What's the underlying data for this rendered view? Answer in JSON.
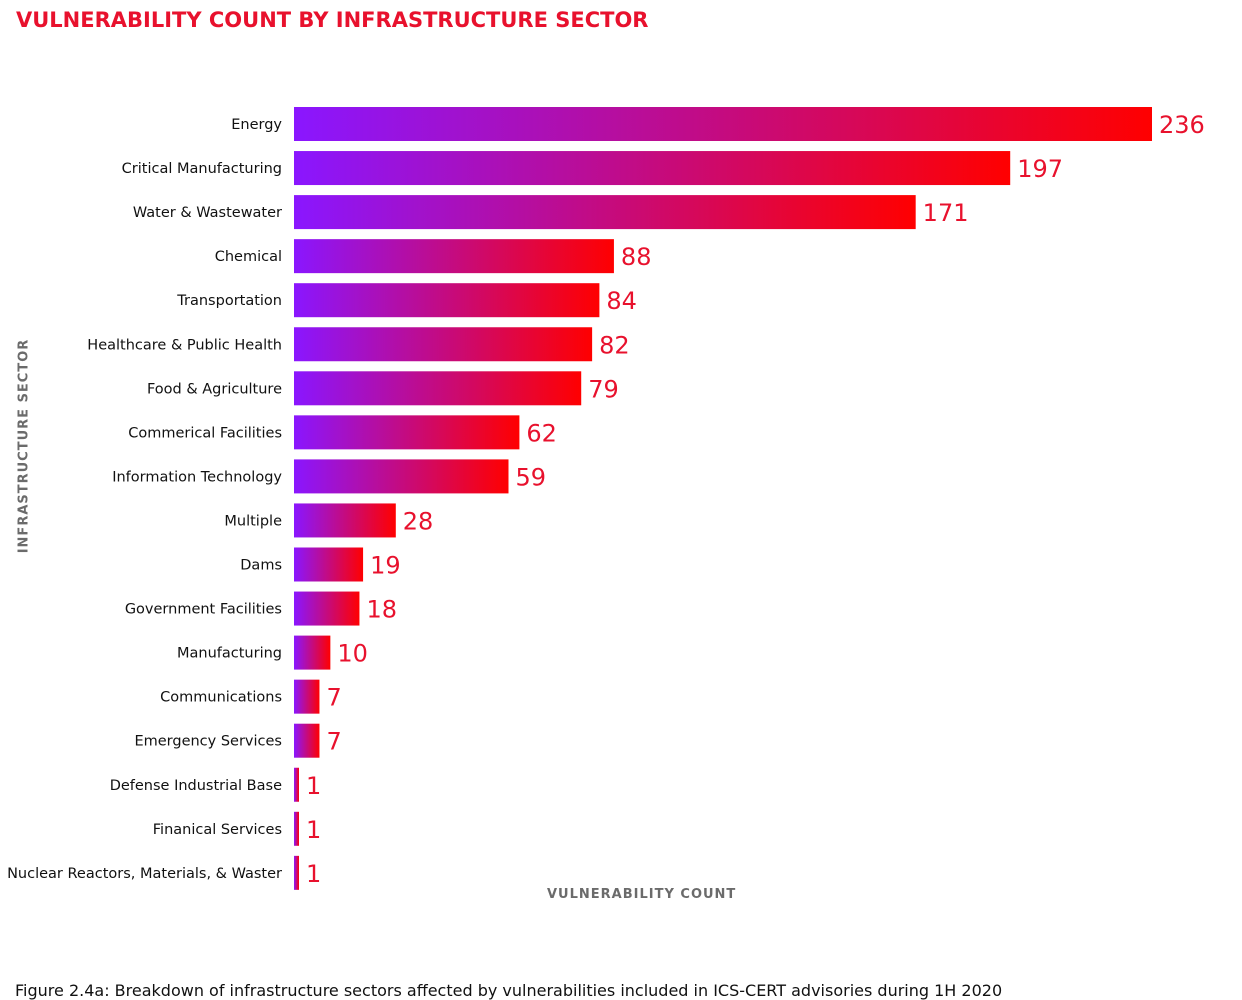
{
  "colors": {
    "accent": "#e8112d",
    "bar_start": "#8a16ff",
    "bar_end": "#ff0000",
    "value_label": "#e8112d"
  },
  "caption": "Figure 2.4a: Breakdown of infrastructure sectors affected by vulnerabilities included in ICS-CERT advisories during 1H 2020",
  "chart_data": {
    "type": "bar",
    "orientation": "horizontal",
    "title": "VULNERABILITY COUNT BY INFRASTRUCTURE SECTOR",
    "xlabel": "VULNERABILITY COUNT",
    "ylabel": "INFRASTRUCTURE SECTOR",
    "grid": false,
    "categories": [
      "Energy",
      "Critical Manufacturing",
      "Water & Wastewater",
      "Chemical",
      "Transportation",
      "Healthcare & Public Health",
      "Food & Agriculture",
      "Commerical Facilities",
      "Information Technology",
      "Multiple",
      "Dams",
      "Government Facilities",
      "Manufacturing",
      "Communications",
      "Emergency Services",
      "Defense Industrial Base",
      "Finanical Services",
      "Nuclear Reactors, Materials, & Waster"
    ],
    "values": [
      236,
      197,
      171,
      88,
      84,
      82,
      79,
      62,
      59,
      28,
      19,
      18,
      10,
      7,
      7,
      1,
      1,
      1
    ]
  }
}
